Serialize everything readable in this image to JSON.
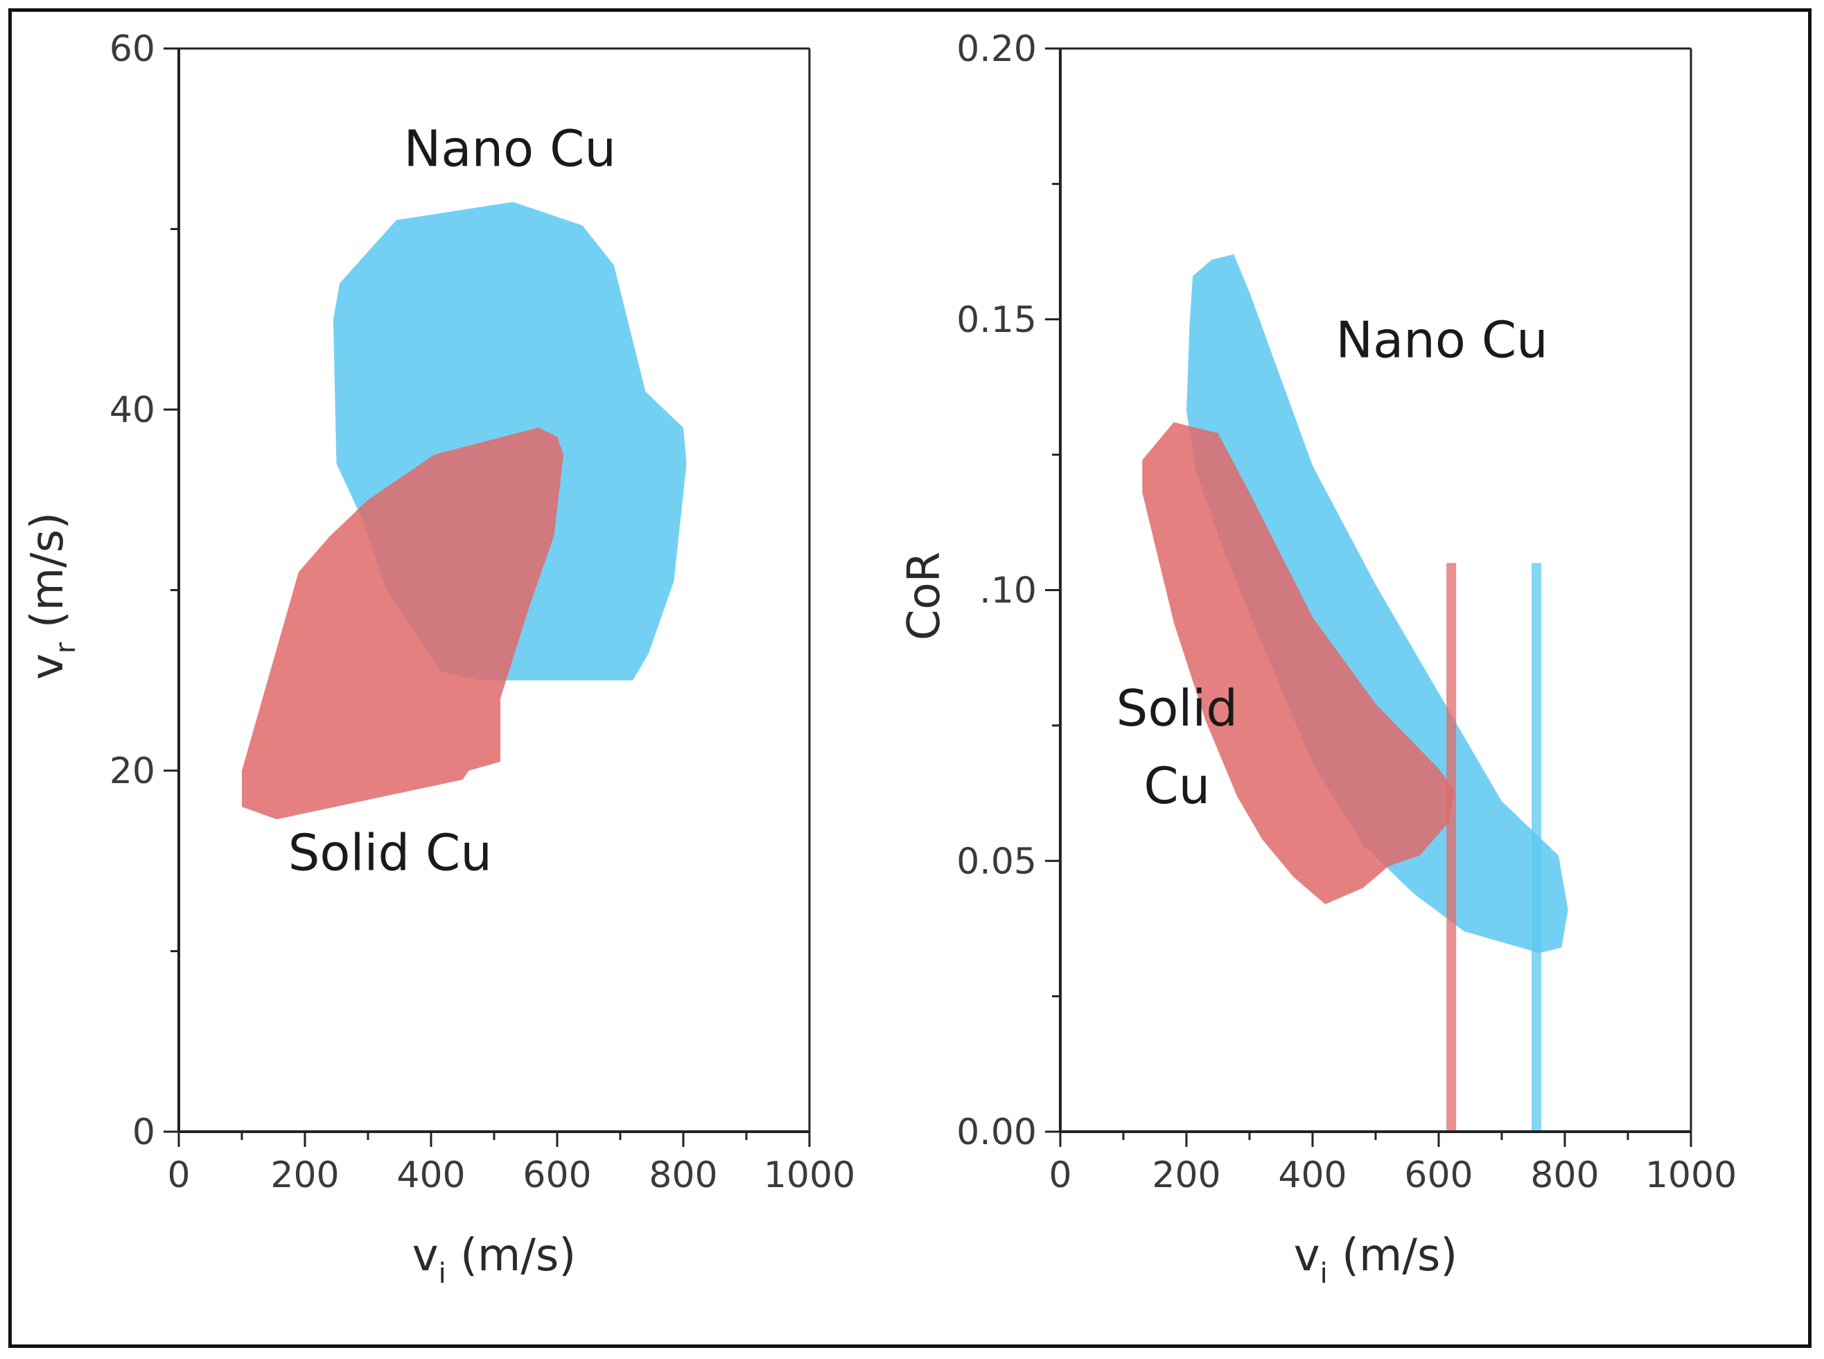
{
  "chart_data": [
    {
      "type": "area",
      "title": "",
      "xlabel": {
        "base": "v",
        "sub": "i",
        "unit": "(m/s)"
      },
      "ylabel": {
        "base": "v",
        "sub": "r",
        "unit": "(m/s)"
      },
      "xlim": [
        0,
        1000
      ],
      "ylim": [
        0,
        60
      ],
      "x_ticks": [
        0,
        200,
        400,
        600,
        800,
        1000
      ],
      "y_ticks": [
        0,
        20,
        40,
        60
      ],
      "x_tick_labels": [
        "0",
        "200",
        "400",
        "600",
        "800",
        "1000"
      ],
      "y_tick_labels": [
        "0",
        "20",
        "40",
        "60"
      ],
      "series": [
        {
          "name": "Nano Cu",
          "label": "Nano Cu",
          "label_anchor": [
            525,
            53.5
          ],
          "color": "#5bc8f0",
          "opacity": 0.85,
          "polygon": [
            [
              255,
              47
            ],
            [
              345,
              50.5
            ],
            [
              530,
              51.5
            ],
            [
              640,
              50.2
            ],
            [
              690,
              48
            ],
            [
              740,
              41
            ],
            [
              800,
              39
            ],
            [
              805,
              37
            ],
            [
              785,
              30.5
            ],
            [
              745,
              26.5
            ],
            [
              720,
              25
            ],
            [
              480,
              25
            ],
            [
              415,
              25.5
            ],
            [
              330,
              30
            ],
            [
              290,
              34
            ],
            [
              250,
              37
            ],
            [
              245,
              45
            ]
          ]
        },
        {
          "name": "Solid Cu",
          "label": "Solid Cu",
          "label_anchor": [
            335,
            14.5
          ],
          "color": "#e06a6a",
          "opacity": 0.85,
          "polygon": [
            [
              190,
              31
            ],
            [
              240,
              33
            ],
            [
              300,
              35
            ],
            [
              405,
              37.5
            ],
            [
              570,
              39
            ],
            [
              600,
              38.5
            ],
            [
              610,
              37.5
            ],
            [
              595,
              33
            ],
            [
              555,
              29
            ],
            [
              510,
              24
            ],
            [
              510,
              20.5
            ],
            [
              460,
              20
            ],
            [
              450,
              19.5
            ],
            [
              155,
              17.3
            ],
            [
              100,
              18
            ],
            [
              100,
              20
            ],
            [
              190,
              31
            ]
          ]
        }
      ]
    },
    {
      "type": "area",
      "title": "",
      "xlabel": {
        "base": "v",
        "sub": "i",
        "unit": "(m/s)"
      },
      "ylabel": {
        "base": "CoR",
        "sub": "",
        "unit": ""
      },
      "xlim": [
        0,
        1000
      ],
      "ylim": [
        0,
        0.2
      ],
      "x_ticks": [
        0,
        200,
        400,
        600,
        800,
        1000
      ],
      "y_ticks": [
        0,
        0.05,
        0.1,
        0.15,
        0.2
      ],
      "x_tick_labels": [
        "0",
        "200",
        "400",
        "600",
        "800",
        "1000"
      ],
      "y_tick_labels": [
        "0.00",
        "0.05",
        ".10",
        "0.15",
        "0.20"
      ],
      "series": [
        {
          "name": "Nano Cu",
          "label": "Nano Cu",
          "label_anchor": [
            605,
            0.143
          ],
          "color": "#5bc8f0",
          "opacity": 0.85,
          "polygon": [
            [
              205,
              0.149
            ],
            [
              210,
              0.158
            ],
            [
              240,
              0.161
            ],
            [
              275,
              0.162
            ],
            [
              300,
              0.155
            ],
            [
              400,
              0.123
            ],
            [
              500,
              0.101
            ],
            [
              600,
              0.081
            ],
            [
              700,
              0.061
            ],
            [
              790,
              0.051
            ],
            [
              805,
              0.041
            ],
            [
              795,
              0.034
            ],
            [
              760,
              0.033
            ],
            [
              700,
              0.035
            ],
            [
              640,
              0.037
            ],
            [
              560,
              0.044
            ],
            [
              480,
              0.053
            ],
            [
              400,
              0.068
            ],
            [
              310,
              0.093
            ],
            [
              260,
              0.107
            ],
            [
              215,
              0.122
            ],
            [
              200,
              0.133
            ]
          ]
        },
        {
          "name": "Solid Cu",
          "label_lines": [
            "Solid",
            "Cu"
          ],
          "label_anchor": [
            185,
            0.075
          ],
          "color": "#e06a6a",
          "opacity": 0.85,
          "polygon": [
            [
              130,
              0.124
            ],
            [
              180,
              0.131
            ],
            [
              250,
              0.129
            ],
            [
              300,
              0.118
            ],
            [
              400,
              0.095
            ],
            [
              500,
              0.079
            ],
            [
              600,
              0.067
            ],
            [
              625,
              0.063
            ],
            [
              615,
              0.057
            ],
            [
              570,
              0.051
            ],
            [
              520,
              0.049
            ],
            [
              480,
              0.045
            ],
            [
              420,
              0.042
            ],
            [
              370,
              0.047
            ],
            [
              320,
              0.054
            ],
            [
              280,
              0.062
            ],
            [
              230,
              0.076
            ],
            [
              180,
              0.094
            ],
            [
              130,
              0.118
            ]
          ]
        }
      ],
      "reference_lines": [
        {
          "name": "Solid Cu marker",
          "x": 620,
          "y_range": [
            0,
            0.105
          ],
          "color": "#e06a6a"
        },
        {
          "name": "Nano Cu marker",
          "x": 755,
          "y_range": [
            0,
            0.105
          ],
          "color": "#5bc8f0"
        }
      ]
    }
  ]
}
